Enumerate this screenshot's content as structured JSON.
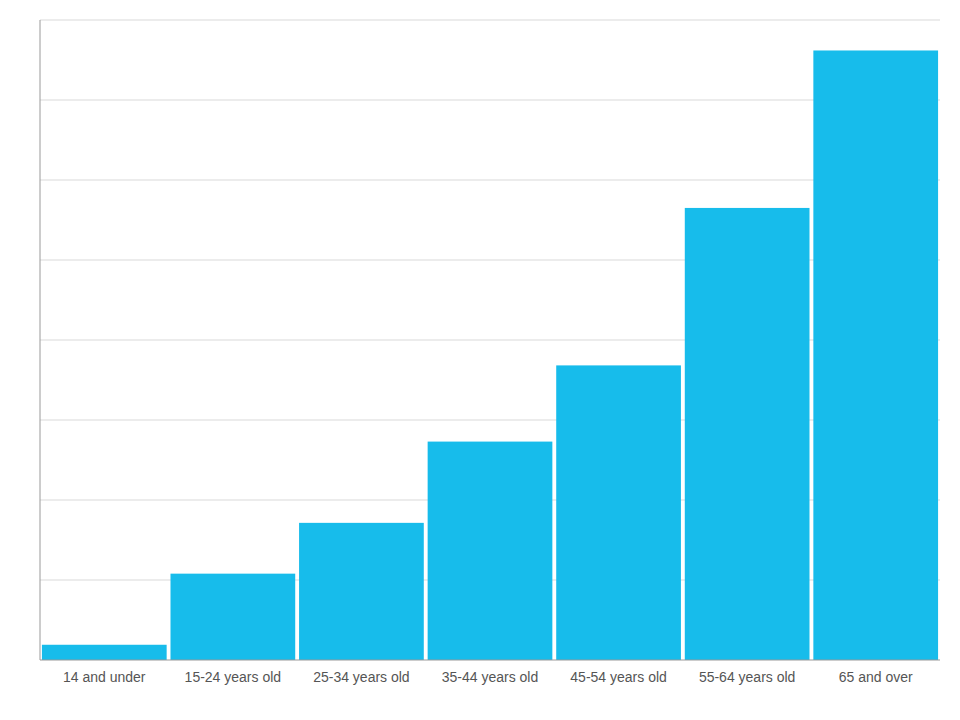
{
  "chart_data": {
    "type": "bar",
    "categories": [
      "14 and under",
      "15-24 years old",
      "25-34 years old",
      "35-44 years old",
      "45-54 years old",
      "55-64 years old",
      "65 and over"
    ],
    "values": [
      1.5,
      8.5,
      13.5,
      21.5,
      29.0,
      44.5,
      60.0
    ],
    "color": "#17BCEB",
    "ylim": [
      0,
      63
    ],
    "yticks": [
      7.875,
      15.75,
      23.625,
      31.5,
      39.375,
      47.25,
      55.125,
      63
    ],
    "grid": true,
    "tick_labels": "x"
  }
}
